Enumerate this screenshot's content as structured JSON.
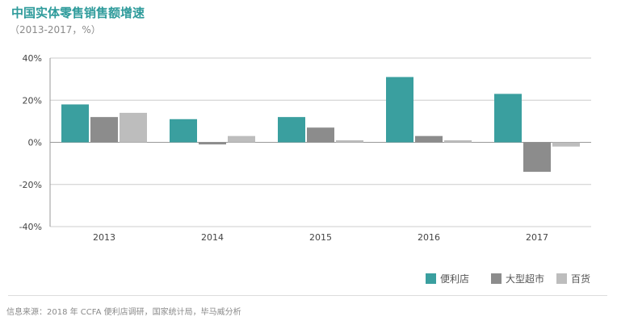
{
  "title": "中国实体零售销售额增速",
  "subtitle": "（2013-2017，%）",
  "source": "信息来源：2018 年 CCFA 便利店调研，国家统计局，毕马威分析",
  "colors": {
    "title": "#2e9b9b",
    "gridline": "#cccccc",
    "axis": "#999999"
  },
  "chart_data": {
    "type": "bar",
    "categories": [
      "2013",
      "2014",
      "2015",
      "2016",
      "2017"
    ],
    "series": [
      {
        "name": "便利店",
        "color": "#3a9f9f",
        "values": [
          18,
          11,
          12,
          31,
          23
        ]
      },
      {
        "name": "大型超市",
        "color": "#8c8c8c",
        "values": [
          12,
          -1,
          7,
          3,
          -14
        ]
      },
      {
        "name": "百货",
        "color": "#bdbdbd",
        "values": [
          14,
          3,
          1,
          1,
          -2
        ]
      }
    ],
    "ylim": [
      -40,
      40
    ],
    "yticks": [
      40,
      20,
      0,
      -20,
      -40
    ],
    "ytick_labels": [
      "40%",
      "20%",
      "0%",
      "-20%",
      "-40%"
    ],
    "grid": true,
    "legend_position": "bottom-right"
  }
}
